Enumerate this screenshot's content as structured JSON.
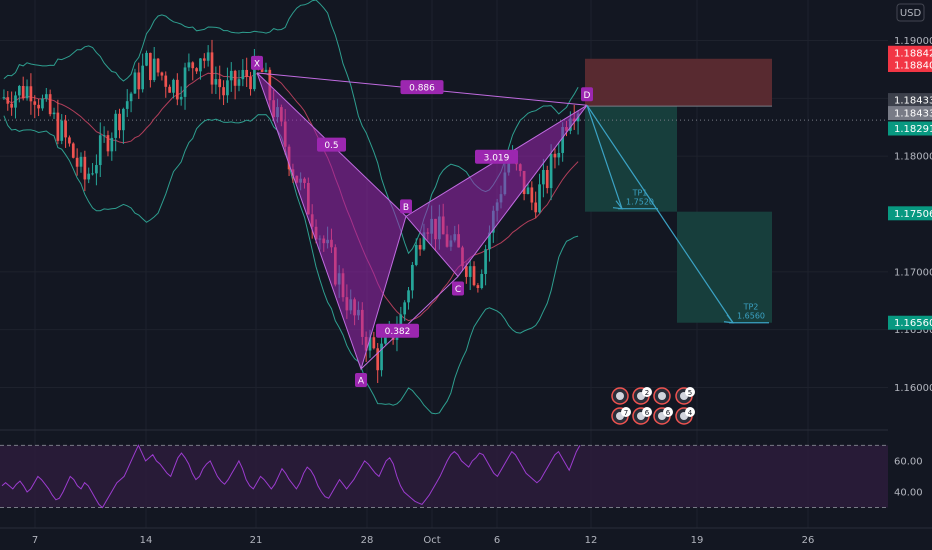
{
  "currency_button": "USD",
  "colors": {
    "background": "#131722",
    "up": "#26a69a",
    "down": "#ef5350",
    "pattern_fill": "#9c27b0",
    "pattern_stroke": "#c06be0",
    "bb": "#2e9e8f",
    "bb_mid": "#b03e5a",
    "stop_zone": "#5c2b31",
    "target_zone": "#17403e",
    "rsi_line": "#9c3ccf",
    "rsi_band": "#2b1c3a"
  },
  "chart_data": {
    "type": "candlestick",
    "price_axis": {
      "ticks": [
        "1.19000",
        "1.18500",
        "1.18000",
        "1.17000",
        "1.16500",
        "1.16000"
      ],
      "tick_values": [
        1.19,
        1.185,
        1.18,
        1.17,
        1.165,
        1.16
      ],
      "range": [
        1.1565,
        1.1935
      ]
    },
    "price_badges": [
      {
        "text": "1.18842",
        "value": 1.18842,
        "color": "#f23645"
      },
      {
        "text": "1.18840",
        "value": 1.1884,
        "color": "#f23645"
      },
      {
        "text": "1.18433",
        "value": 1.18433,
        "color": "#3c404b"
      },
      {
        "text": "1.18433",
        "value": 1.18433,
        "color": "#787b86"
      },
      {
        "text": "1.18291",
        "value": 1.18291,
        "color": "#089981"
      },
      {
        "text": "1.17506",
        "value": 1.17506,
        "color": "#089981"
      },
      {
        "text": "1.16560",
        "value": 1.1656,
        "color": "#089981"
      }
    ],
    "time_axis": {
      "labels": [
        "7",
        "14",
        "21",
        "28",
        "Oct",
        "6",
        "12",
        "19",
        "26"
      ]
    },
    "pattern": {
      "points": [
        {
          "name": "X",
          "price": 1.1872
        },
        {
          "name": "A",
          "price": 1.1616
        },
        {
          "name": "B",
          "price": 1.1748
        },
        {
          "name": "C",
          "price": 1.1696
        },
        {
          "name": "D",
          "price": 1.1844
        }
      ],
      "ratios": [
        "0.886",
        "0.5",
        "0.382",
        "3.019"
      ]
    },
    "targets": [
      {
        "label": "TP1",
        "value": "1.7520",
        "price": 1.1752
      },
      {
        "label": "TP2",
        "value": "1.6560",
        "price": 1.1656
      }
    ],
    "stop_zone": [
      1.18433,
      1.18842
    ],
    "rsi": {
      "ticks": [
        "60.00",
        "40.00"
      ],
      "tick_values": [
        60,
        40
      ],
      "upper_band": 70,
      "lower_band": 30,
      "values": [
        44,
        46,
        44,
        42,
        45,
        47,
        44,
        40,
        42,
        46,
        50,
        48,
        45,
        42,
        38,
        35,
        36,
        40,
        45,
        50,
        48,
        44,
        42,
        46,
        44,
        40,
        36,
        32,
        30,
        34,
        38,
        42,
        46,
        48,
        50,
        55,
        60,
        65,
        70,
        65,
        60,
        62,
        64,
        60,
        58,
        55,
        52,
        50,
        56,
        62,
        65,
        62,
        58,
        52,
        48,
        50,
        55,
        58,
        60,
        55,
        50,
        47,
        45,
        48,
        52,
        56,
        60,
        55,
        48,
        44,
        42,
        46,
        50,
        48,
        45,
        42,
        45,
        50,
        55,
        52,
        48,
        45,
        42,
        46,
        52,
        56,
        54,
        50,
        44,
        40,
        37,
        36,
        40,
        44,
        48,
        45,
        42,
        45,
        48,
        52,
        56,
        60,
        58,
        55,
        52,
        50,
        55,
        60,
        62,
        58,
        50,
        44,
        40,
        38,
        36,
        34,
        33,
        32,
        35,
        38,
        42,
        46,
        50,
        55,
        60,
        64,
        66,
        64,
        60,
        58,
        56,
        60,
        62,
        65,
        64,
        60,
        56,
        52,
        50,
        54,
        58,
        62,
        66,
        64,
        60,
        56,
        52,
        50,
        48,
        46,
        48,
        52,
        56,
        60,
        64,
        66,
        62,
        58,
        54,
        60,
        66,
        70
      ]
    }
  }
}
